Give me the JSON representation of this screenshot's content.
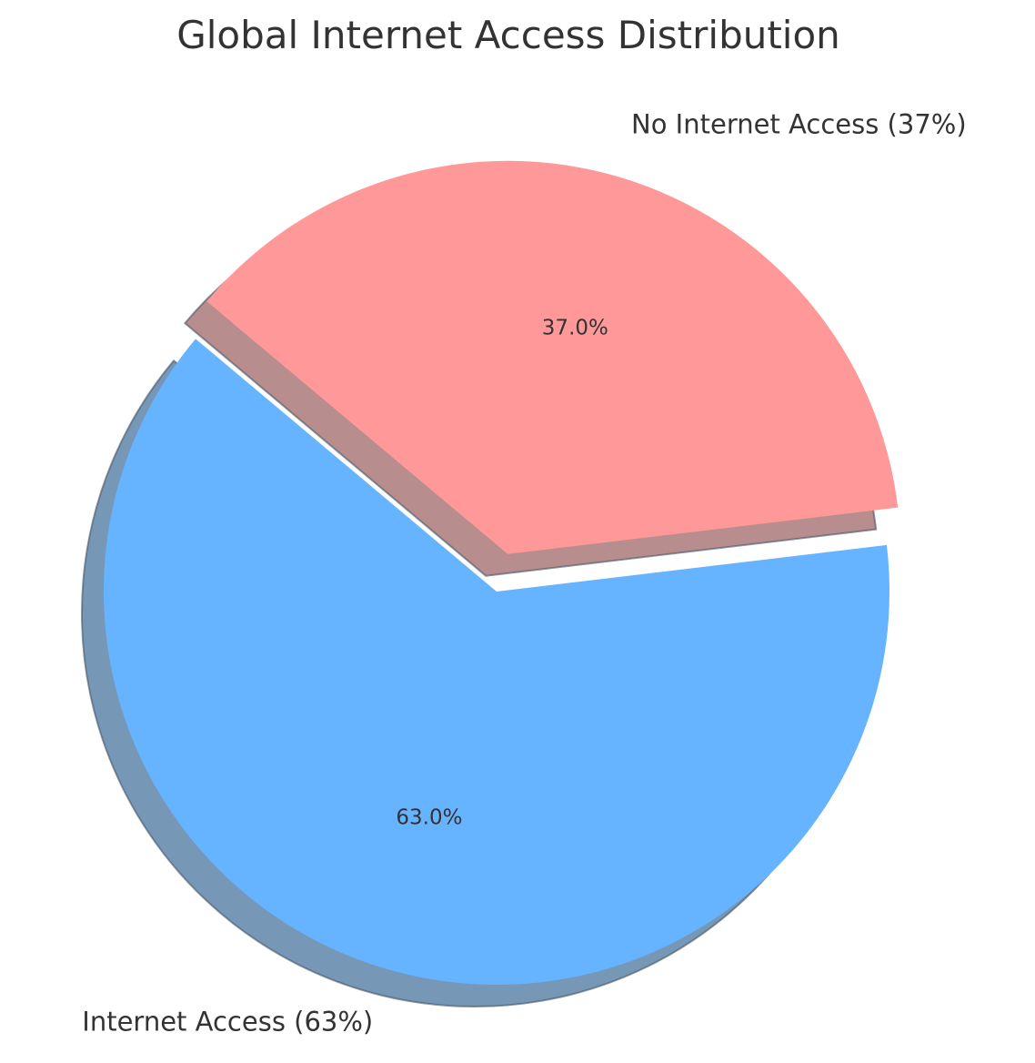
{
  "chart_data": {
    "type": "pie",
    "title": "Global Internet Access Distribution",
    "slices": [
      {
        "label": "Internet Access (63%)",
        "value": 63,
        "pct_label": "63.0%",
        "color": "#66b3ff",
        "exploded": false
      },
      {
        "label": "No Internet Access (37%)",
        "value": 37,
        "pct_label": "37.0%",
        "color": "#ff9999",
        "exploded": true
      }
    ],
    "start_angle_deg": 140,
    "direction": "counterclockwise",
    "shadow": true,
    "legend": "none"
  }
}
